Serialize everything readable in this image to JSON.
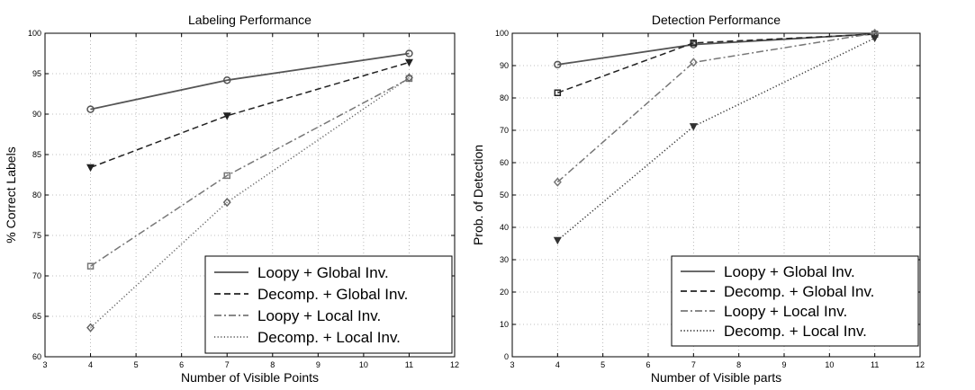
{
  "chart_data": [
    {
      "type": "line",
      "title": "Labeling Performance",
      "xlabel": "Number of Visible Points",
      "ylabel": "% Correct Labels",
      "xlim": [
        3,
        12
      ],
      "ylim": [
        60,
        100
      ],
      "xticks": [
        3,
        4,
        5,
        6,
        7,
        8,
        9,
        10,
        11,
        12
      ],
      "yticks": [
        60,
        65,
        70,
        75,
        80,
        85,
        90,
        95,
        100
      ],
      "grid": true,
      "legend_position": "bottom-right",
      "x": [
        4,
        7,
        11
      ],
      "series": [
        {
          "name": "Loopy + Global Inv.",
          "values": [
            90.6,
            94.2,
            97.5
          ],
          "style": "solid",
          "marker": "circle",
          "color": "#555555"
        },
        {
          "name": "Decomp. + Global Inv.",
          "values": [
            83.4,
            89.8,
            96.4
          ],
          "style": "dashed",
          "marker": "triangle-down",
          "color": "#222222"
        },
        {
          "name": "Loopy + Local Inv.",
          "values": [
            71.2,
            82.4,
            94.4
          ],
          "style": "dashdot",
          "marker": "square",
          "color": "#777777"
        },
        {
          "name": "Decomp. + Local Inv.",
          "values": [
            63.6,
            79.1,
            94.5
          ],
          "style": "dotted",
          "marker": "diamond",
          "color": "#666666"
        }
      ]
    },
    {
      "type": "line",
      "title": "Detection Performance",
      "xlabel": "Number of Visible parts",
      "ylabel": "Prob. of Detection",
      "xlim": [
        3,
        12
      ],
      "ylim": [
        0,
        100
      ],
      "xticks": [
        3,
        4,
        5,
        6,
        7,
        8,
        9,
        10,
        11,
        12
      ],
      "yticks": [
        0,
        10,
        20,
        30,
        40,
        50,
        60,
        70,
        80,
        90,
        100
      ],
      "grid": true,
      "legend_position": "bottom-right",
      "x": [
        4,
        7,
        11
      ],
      "series": [
        {
          "name": "Loopy + Global Inv.",
          "values": [
            90.3,
            96.5,
            99.8
          ],
          "style": "solid",
          "marker": "circle",
          "color": "#555555"
        },
        {
          "name": "Decomp. + Global Inv.",
          "values": [
            81.6,
            97.0,
            99.7
          ],
          "style": "dashed",
          "marker": "square",
          "color": "#222222"
        },
        {
          "name": "Loopy + Local Inv.",
          "values": [
            54.0,
            91.0,
            100.0
          ],
          "style": "dashdot",
          "marker": "diamond",
          "color": "#777777"
        },
        {
          "name": "Decomp. + Local Inv.",
          "values": [
            36.0,
            71.2,
            98.5
          ],
          "style": "dotted",
          "marker": "triangle-down",
          "color": "#333333"
        }
      ]
    }
  ]
}
